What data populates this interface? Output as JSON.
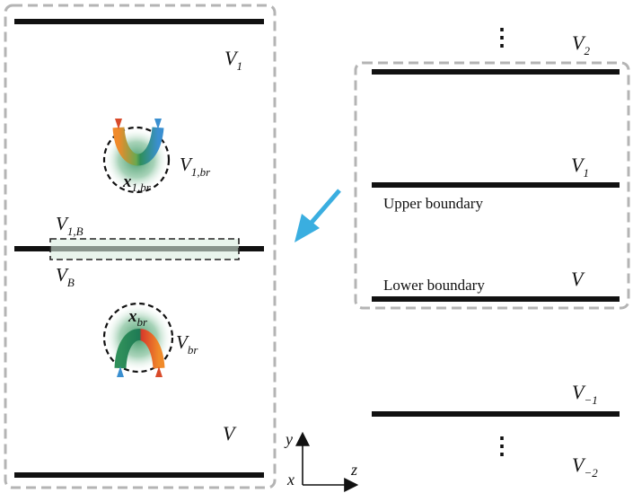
{
  "left_panel": {
    "region_top": "V",
    "region_top_sub": "1",
    "region_bottom": "V",
    "bubble_top_region": "V",
    "bubble_top_region_sub": "1,br",
    "bubble_top_point": "x",
    "bubble_top_point_sub": "1,br",
    "boundary_region": "V",
    "boundary_region_sub": "1,B",
    "boundary_plane": "V",
    "boundary_plane_sub": "B",
    "bubble_bottom_point": "x",
    "bubble_bottom_point_sub": "br",
    "bubble_bottom_region": "V",
    "bubble_bottom_region_sub": "br"
  },
  "axes": {
    "y": "y",
    "x": "x",
    "z": "z"
  },
  "right_panel": {
    "ellipsis_top": "⋮",
    "region_v2": "V",
    "region_v2_sub": "2",
    "region_v1": "V",
    "region_v1_sub": "1",
    "upper_boundary": "Upper boundary",
    "lower_boundary": "Lower boundary",
    "region_v": "V",
    "region_vm1": "V",
    "region_vm1_sub": "−1",
    "ellipsis_bottom": "⋮",
    "region_vm2": "V",
    "region_vm2_sub": "−2"
  },
  "colors": {
    "frame": "#b4b4b4",
    "arrow": "#3aaee0",
    "line": "#111111",
    "bubble_green": "#2f8f5a",
    "bubble_orange": "#f08a2a",
    "bubble_blue": "#3a8fd0",
    "bubble_red": "#d83a2a"
  }
}
